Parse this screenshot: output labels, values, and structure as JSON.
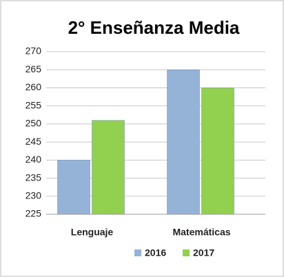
{
  "chart_data": {
    "type": "bar",
    "title": "2° Enseñanza Media",
    "categories": [
      "Lenguaje",
      "Matemáticas"
    ],
    "series": [
      {
        "name": "2016",
        "color": "#95b3d7",
        "values": [
          240,
          265
        ]
      },
      {
        "name": "2017",
        "color": "#92d050",
        "values": [
          251,
          260
        ]
      }
    ],
    "ylim": [
      225,
      270
    ],
    "yticks": [
      225,
      230,
      235,
      240,
      245,
      250,
      255,
      260,
      265,
      270
    ],
    "grid": true,
    "legend": "bottom"
  }
}
